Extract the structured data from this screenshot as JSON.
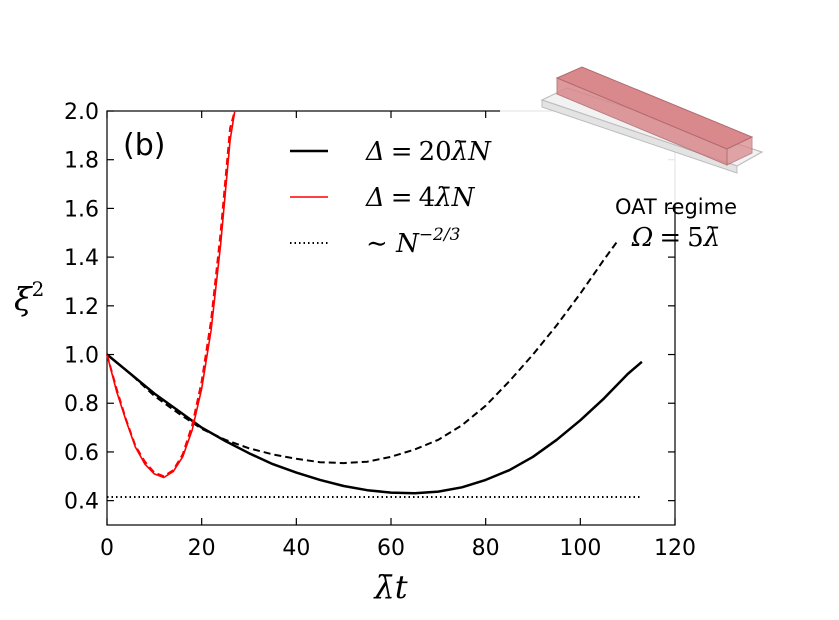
{
  "chart_data": {
    "type": "line",
    "panel_label": "(b)",
    "xlabel": "λ̄t",
    "ylabel": "ξ",
    "ylabel_sup": "2",
    "xlim": [
      0,
      120
    ],
    "ylim": [
      0.3,
      2.0
    ],
    "xticks": [
      0,
      20,
      40,
      60,
      80,
      100,
      120
    ],
    "yticks": [
      0.4,
      0.6,
      0.8,
      1.0,
      1.2,
      1.4,
      1.6,
      1.8,
      2.0
    ],
    "xtick_labels": [
      "0",
      "20",
      "40",
      "60",
      "80",
      "100",
      "120"
    ],
    "ytick_labels": [
      "0.4",
      "0.6",
      "0.8",
      "1.0",
      "1.2",
      "1.4",
      "1.6",
      "1.8",
      "2.0"
    ],
    "legend": [
      {
        "label": "Δ = 20λ̄N",
        "lhs": "Δ",
        "eq": "=",
        "rhs_num": "20",
        "rhs_sym": "λ̄",
        "rhs_tail": "N",
        "color": "#000000",
        "style": "solid"
      },
      {
        "label": "Δ = 4λ̄N",
        "lhs": "Δ",
        "eq": "=",
        "rhs_num": "4",
        "rhs_sym": "λ̄",
        "rhs_tail": "N",
        "color": "#ff0000",
        "style": "solid"
      },
      {
        "label": "∼ N^(−2/3)",
        "prefix": "∼ ",
        "base": "N",
        "exp": "−2/3",
        "color": "#000000",
        "style": "dotted"
      }
    ],
    "series": [
      {
        "name": "Δ = 20λ̄N (solid)",
        "color": "#000000",
        "style": "solid",
        "width": 2.5,
        "x": [
          0,
          5,
          10,
          15,
          20,
          25,
          30,
          35,
          40,
          45,
          50,
          55,
          60,
          65,
          70,
          75,
          80,
          85,
          90,
          95,
          100,
          105,
          110,
          113
        ],
        "y": [
          1.0,
          0.92,
          0.84,
          0.77,
          0.7,
          0.645,
          0.595,
          0.55,
          0.515,
          0.485,
          0.46,
          0.443,
          0.433,
          0.43,
          0.437,
          0.455,
          0.485,
          0.525,
          0.58,
          0.65,
          0.73,
          0.82,
          0.92,
          0.97
        ]
      },
      {
        "name": "Δ = 20λ̄N (dashed)",
        "color": "#000000",
        "style": "dashed",
        "width": 2.0,
        "x": [
          0,
          5,
          10,
          15,
          20,
          25,
          30,
          35,
          40,
          45,
          50,
          55,
          60,
          65,
          70,
          75,
          80,
          85,
          90,
          95,
          100,
          105,
          108
        ],
        "y": [
          1.0,
          0.92,
          0.83,
          0.76,
          0.695,
          0.65,
          0.615,
          0.59,
          0.572,
          0.558,
          0.554,
          0.56,
          0.58,
          0.61,
          0.65,
          0.71,
          0.79,
          0.89,
          1.0,
          1.12,
          1.25,
          1.39,
          1.47
        ]
      },
      {
        "name": "Δ = 4λ̄N (solid)",
        "color": "#ff0000",
        "style": "solid",
        "width": 1.6,
        "x": [
          0,
          2,
          4,
          6,
          8,
          10,
          12,
          14,
          16,
          18,
          20,
          22,
          24,
          26,
          27
        ],
        "y": [
          1.0,
          0.85,
          0.73,
          0.62,
          0.55,
          0.51,
          0.495,
          0.52,
          0.58,
          0.69,
          0.86,
          1.1,
          1.45,
          1.88,
          2.0
        ]
      },
      {
        "name": "Δ = 4λ̄N (dashed)",
        "color": "#ff0000",
        "style": "dashed",
        "width": 2.0,
        "x": [
          0,
          2,
          4,
          6,
          8,
          10,
          12,
          14,
          16,
          18,
          20,
          22,
          24,
          26,
          27
        ],
        "y": [
          1.0,
          0.86,
          0.735,
          0.625,
          0.56,
          0.515,
          0.5,
          0.525,
          0.59,
          0.71,
          0.89,
          1.14,
          1.5,
          1.93,
          2.0
        ]
      },
      {
        "name": "∼ N^(−2/3)",
        "color": "#000000",
        "style": "dotted",
        "width": 2.0,
        "x": [
          0,
          113
        ],
        "y": [
          0.415,
          0.415
        ]
      }
    ],
    "inset": {
      "title": "OAT regime",
      "eq_lhs": "Ω",
      "eq_mid": "=",
      "eq_num": "5",
      "eq_sym": "λ̄",
      "slab_color": "#d9888c",
      "base_color": "#f2f2f2"
    }
  }
}
